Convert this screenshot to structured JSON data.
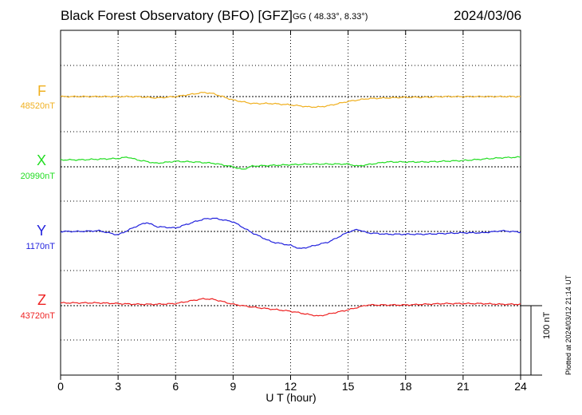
{
  "header": {
    "title": "Black Forest Observatory (BFO)  [GFZ]",
    "coords": "GG ( 48.33°,   8.33°)",
    "date": "2024/03/06"
  },
  "chart_data": {
    "type": "line",
    "title": "Black Forest Observatory (BFO)  [GFZ]",
    "date": "2024/03/06",
    "xlabel": "U T (hour)",
    "xlim": [
      0,
      24
    ],
    "xticks": [
      "0",
      "3",
      "6",
      "9",
      "12",
      "15",
      "18",
      "21",
      "24"
    ],
    "grid": true,
    "scale_bar": "100 nT",
    "plotted_note": "Plotted at 2024/03/12 21:14 UT",
    "series": [
      {
        "name": "F",
        "baseline": "48520nT",
        "color": "#f0b020",
        "x": [
          0,
          1,
          2,
          3,
          4,
          5,
          6,
          7,
          7.5,
          8,
          9,
          10,
          11,
          12,
          13,
          13.5,
          14,
          15,
          16,
          17,
          18,
          19,
          20,
          21,
          22,
          23,
          24
        ],
        "y": [
          0,
          0,
          0,
          0,
          0,
          -2,
          0,
          4,
          6,
          4,
          -5,
          -10,
          -10,
          -12,
          -15,
          -15,
          -13,
          -7,
          -3,
          -2,
          -1,
          -1,
          0,
          0,
          0,
          0,
          0
        ]
      },
      {
        "name": "X",
        "baseline": "20990nT",
        "color": "#22dd22",
        "x": [
          0,
          1,
          2,
          3,
          3.5,
          4,
          5,
          6,
          7,
          8,
          9,
          9.5,
          10,
          11,
          12,
          13,
          14,
          15,
          15.5,
          16,
          17,
          18,
          19,
          20,
          21,
          22,
          23,
          24
        ],
        "y": [
          10,
          10,
          11,
          12,
          14,
          10,
          5,
          8,
          7,
          5,
          0,
          -4,
          1,
          2,
          3,
          4,
          4,
          4,
          1,
          3,
          7,
          7,
          7,
          8,
          9,
          11,
          13,
          14
        ]
      },
      {
        "name": "Y",
        "baseline": "1170nT",
        "color": "#2222dd",
        "x": [
          0,
          1,
          2,
          3,
          4,
          4.5,
          5,
          6,
          7,
          7.5,
          8,
          9,
          10,
          11,
          12,
          12.5,
          13,
          14,
          15,
          15.5,
          16,
          17,
          18,
          19,
          20,
          21,
          22,
          23,
          24
        ],
        "y": [
          0,
          0,
          1,
          -5,
          8,
          13,
          7,
          5,
          14,
          18,
          19,
          14,
          -2,
          -15,
          -20,
          -25,
          -22,
          -15,
          -1,
          3,
          -2,
          -4,
          -4,
          -4,
          -3,
          -2,
          -2,
          1,
          -1
        ]
      },
      {
        "name": "Z",
        "baseline": "43720nT",
        "color": "#ee2222",
        "x": [
          0,
          1,
          2,
          3,
          4,
          5,
          6,
          7,
          7.5,
          8,
          9,
          10,
          11,
          12,
          13,
          13.5,
          14,
          15,
          16,
          17,
          18,
          19,
          20,
          21,
          22,
          23,
          24
        ],
        "y": [
          4,
          4,
          4,
          3,
          2,
          2,
          3,
          8,
          10,
          9,
          2,
          -2,
          -5,
          -8,
          -13,
          -15,
          -12,
          -6,
          1,
          1,
          1,
          2,
          3,
          3,
          3,
          2,
          2
        ]
      }
    ]
  }
}
